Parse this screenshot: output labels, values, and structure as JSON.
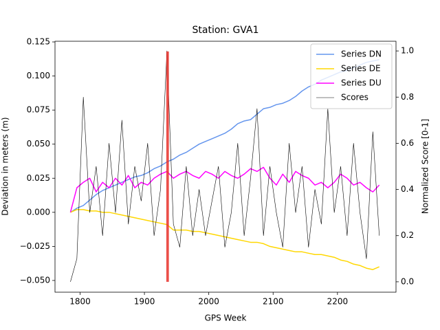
{
  "chart_data": {
    "type": "line",
    "title": "Station: GVA1",
    "x_label": "GPS Week",
    "y_label": "Deviation in meters (m)",
    "y2_label": "Normalized Score [0-1]",
    "x": [
      1785,
      1795,
      1805,
      1815,
      1825,
      1835,
      1845,
      1855,
      1865,
      1875,
      1885,
      1895,
      1905,
      1915,
      1925,
      1935,
      1945,
      1955,
      1965,
      1975,
      1985,
      1995,
      2005,
      2015,
      2025,
      2035,
      2045,
      2055,
      2065,
      2075,
      2085,
      2095,
      2105,
      2115,
      2125,
      2135,
      2145,
      2155,
      2165,
      2175,
      2185,
      2195,
      2205,
      2215,
      2225,
      2235,
      2245,
      2255,
      2265
    ],
    "series": [
      {
        "name": "Series DN",
        "color": "#6495ed",
        "width": 1.5,
        "values": [
          0.0,
          0.003,
          0.005,
          0.009,
          0.013,
          0.016,
          0.018,
          0.02,
          0.022,
          0.024,
          0.026,
          0.027,
          0.029,
          0.032,
          0.034,
          0.037,
          0.039,
          0.042,
          0.044,
          0.047,
          0.05,
          0.052,
          0.054,
          0.056,
          0.058,
          0.061,
          0.065,
          0.067,
          0.068,
          0.072,
          0.076,
          0.077,
          0.079,
          0.08,
          0.082,
          0.085,
          0.089,
          0.092,
          0.094,
          0.097,
          0.099,
          0.101,
          0.103,
          0.104,
          0.106,
          0.108,
          0.11,
          0.111,
          0.112
        ]
      },
      {
        "name": "Series DE",
        "color": "#ffd700",
        "width": 1.5,
        "values": [
          0.0,
          0.002,
          0.002,
          0.001,
          0.001,
          0.0,
          0.0,
          -0.001,
          -0.002,
          -0.003,
          -0.004,
          -0.005,
          -0.006,
          -0.007,
          -0.008,
          -0.009,
          -0.013,
          -0.013,
          -0.013,
          -0.014,
          -0.014,
          -0.015,
          -0.016,
          -0.017,
          -0.018,
          -0.019,
          -0.02,
          -0.021,
          -0.022,
          -0.022,
          -0.023,
          -0.025,
          -0.026,
          -0.027,
          -0.028,
          -0.029,
          -0.029,
          -0.03,
          -0.031,
          -0.031,
          -0.032,
          -0.033,
          -0.035,
          -0.036,
          -0.038,
          -0.039,
          -0.041,
          -0.042,
          -0.04
        ]
      },
      {
        "name": "Series DU",
        "color": "#ff00ff",
        "width": 1.5,
        "values": [
          0.0,
          0.018,
          0.022,
          0.025,
          0.015,
          0.022,
          0.018,
          0.025,
          0.02,
          0.027,
          0.018,
          0.022,
          0.02,
          0.025,
          0.028,
          0.03,
          0.025,
          0.028,
          0.03,
          0.027,
          0.025,
          0.03,
          0.028,
          0.025,
          0.03,
          0.027,
          0.025,
          0.028,
          0.032,
          0.03,
          0.033,
          0.025,
          0.02,
          0.028,
          0.022,
          0.03,
          0.027,
          0.025,
          0.02,
          0.022,
          0.018,
          0.022,
          0.028,
          0.025,
          0.02,
          0.022,
          0.018,
          0.015,
          0.02
        ]
      },
      {
        "name": "Scores",
        "color": "#000000",
        "width": 0.6,
        "axis": "y2",
        "values": [
          0.0,
          0.1,
          0.8,
          0.3,
          0.5,
          0.2,
          0.6,
          0.3,
          0.7,
          0.25,
          0.5,
          0.35,
          0.6,
          0.2,
          0.4,
          1.0,
          0.25,
          0.15,
          0.5,
          0.2,
          0.4,
          0.2,
          0.35,
          0.5,
          0.15,
          0.3,
          0.6,
          0.2,
          0.45,
          0.75,
          0.2,
          0.5,
          0.3,
          0.15,
          0.6,
          0.3,
          0.5,
          0.15,
          0.4,
          0.25,
          0.75,
          0.3,
          0.5,
          0.2,
          0.6,
          0.3,
          0.1,
          0.65,
          0.2
        ]
      }
    ],
    "highlight": {
      "x": [
        1934,
        1938
      ],
      "y": [
        -0.051,
        0.118
      ],
      "color": "#e8302a"
    },
    "xlim": [
      1761,
      2291
    ],
    "xticks": [
      1800,
      1900,
      2000,
      2100,
      2200
    ],
    "ylim": [
      -0.0586,
      0.1255
    ],
    "yticks": [
      {
        "value": -0.05,
        "label": "−0.050"
      },
      {
        "value": -0.025,
        "label": "−0.025"
      },
      {
        "value": 0,
        "label": "0.000"
      },
      0.025,
      {
        "value": 0.05,
        "label": "0.050"
      },
      0.075,
      {
        "value": 0.1,
        "label": "0.100"
      },
      0.125
    ],
    "y2lim": [
      -0.045,
      1.042
    ],
    "y2ticks": [
      {
        "value": 0,
        "label": "0.0"
      },
      0.2,
      0.4,
      0.6,
      0.8,
      {
        "value": 1,
        "label": "1.0"
      }
    ],
    "legend": "upper right"
  }
}
